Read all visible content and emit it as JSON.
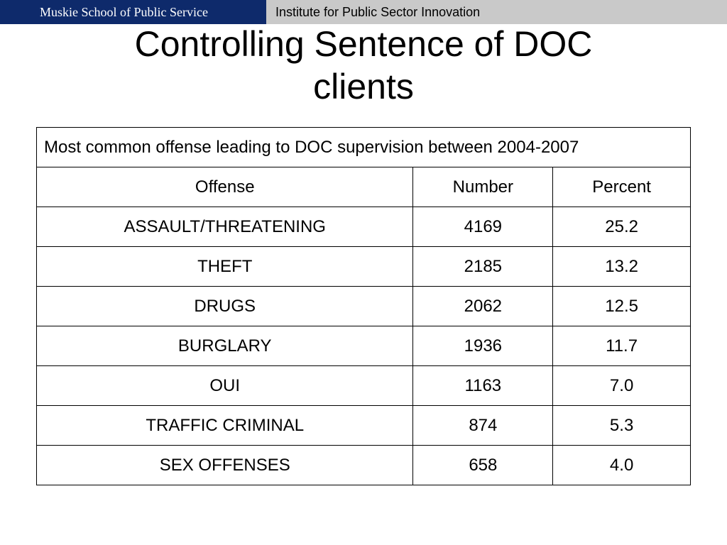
{
  "header": {
    "left_label": "Muskie School of Public Service",
    "right_label": "Institute for Public Sector Innovation"
  },
  "title_line1": "Controlling Sentence of DOC",
  "title_line2": "clients",
  "table": {
    "caption": "Most common offense leading to DOC supervision between 2004-2007",
    "columns": [
      "Offense",
      "Number",
      "Percent"
    ],
    "rows": [
      [
        "ASSAULT/THREATENING",
        "4169",
        "25.2"
      ],
      [
        "THEFT",
        "2185",
        "13.2"
      ],
      [
        "DRUGS",
        "2062",
        "12.5"
      ],
      [
        "BURGLARY",
        "1936",
        "11.7"
      ],
      [
        "OUI",
        "1163",
        "7.0"
      ],
      [
        "TRAFFIC CRIMINAL",
        "874",
        "5.3"
      ],
      [
        "SEX OFFENSES",
        "658",
        "4.0"
      ]
    ]
  },
  "colors": {
    "header_left_bg": "#0e2a6b",
    "header_bar_bg": "#c9c9c9"
  }
}
